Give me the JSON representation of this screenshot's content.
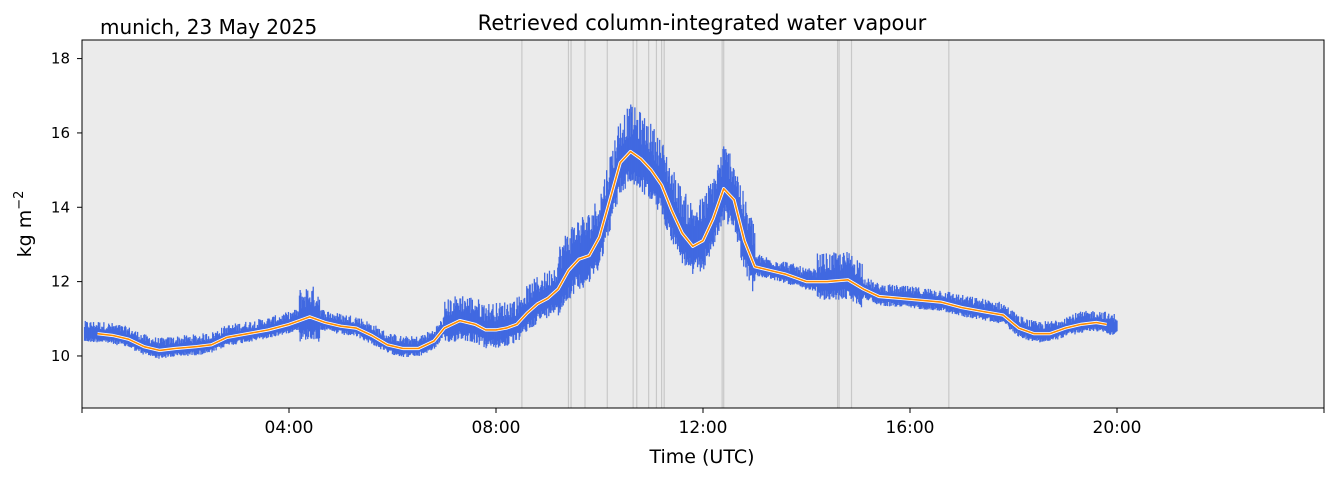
{
  "chart_data": {
    "type": "line",
    "site_label": "munich, 23 May 2025",
    "title": "Retrieved column-integrated water vapour",
    "xlabel": "Time (UTC)",
    "ylabel": "kg m",
    "ylabel_superscript": "−2",
    "xlim_hours": [
      0,
      24
    ],
    "ylim": [
      8.6,
      18.5
    ],
    "x_ticks": [
      {
        "hour": 4,
        "label": "04:00"
      },
      {
        "hour": 8,
        "label": "08:00"
      },
      {
        "hour": 12,
        "label": "12:00"
      },
      {
        "hour": 16,
        "label": "16:00"
      },
      {
        "hour": 20,
        "label": "20:00"
      }
    ],
    "x_minor_tick_hours": [
      0,
      24
    ],
    "y_ticks": [
      10,
      12,
      14,
      16,
      18
    ],
    "grid": false,
    "colors": {
      "background": "#ebebeb",
      "raw_points": "#4169e1",
      "smoothed_line": "#ff8c00",
      "flag_lines": "#c8c8c8"
    },
    "flag_hours": [
      8.5,
      9.4,
      9.45,
      9.72,
      10.15,
      10.65,
      10.72,
      10.95,
      11.1,
      11.2,
      11.25,
      12.37,
      12.4,
      14.6,
      14.63,
      14.87,
      16.75
    ],
    "series": [
      {
        "kind": "smoothed",
        "points": [
          [
            0.3,
            10.6
          ],
          [
            0.6,
            10.55
          ],
          [
            0.9,
            10.45
          ],
          [
            1.2,
            10.25
          ],
          [
            1.5,
            10.15
          ],
          [
            1.8,
            10.2
          ],
          [
            2.2,
            10.25
          ],
          [
            2.5,
            10.3
          ],
          [
            2.8,
            10.5
          ],
          [
            3.2,
            10.6
          ],
          [
            3.6,
            10.7
          ],
          [
            4.0,
            10.85
          ],
          [
            4.2,
            10.95
          ],
          [
            4.4,
            11.05
          ],
          [
            4.7,
            10.9
          ],
          [
            5.0,
            10.8
          ],
          [
            5.3,
            10.75
          ],
          [
            5.6,
            10.55
          ],
          [
            5.9,
            10.3
          ],
          [
            6.2,
            10.2
          ],
          [
            6.5,
            10.2
          ],
          [
            6.8,
            10.4
          ],
          [
            7.0,
            10.75
          ],
          [
            7.3,
            10.95
          ],
          [
            7.6,
            10.85
          ],
          [
            7.8,
            10.7
          ],
          [
            8.0,
            10.7
          ],
          [
            8.2,
            10.75
          ],
          [
            8.4,
            10.85
          ],
          [
            8.6,
            11.15
          ],
          [
            8.8,
            11.4
          ],
          [
            9.0,
            11.55
          ],
          [
            9.2,
            11.8
          ],
          [
            9.4,
            12.3
          ],
          [
            9.6,
            12.6
          ],
          [
            9.8,
            12.7
          ],
          [
            10.0,
            13.2
          ],
          [
            10.2,
            14.2
          ],
          [
            10.4,
            15.2
          ],
          [
            10.6,
            15.5
          ],
          [
            10.8,
            15.3
          ],
          [
            11.0,
            15.0
          ],
          [
            11.2,
            14.6
          ],
          [
            11.4,
            13.9
          ],
          [
            11.6,
            13.3
          ],
          [
            11.8,
            12.95
          ],
          [
            12.0,
            13.1
          ],
          [
            12.2,
            13.7
          ],
          [
            12.4,
            14.5
          ],
          [
            12.6,
            14.2
          ],
          [
            12.8,
            13.1
          ],
          [
            13.0,
            12.4
          ],
          [
            13.3,
            12.3
          ],
          [
            13.6,
            12.2
          ],
          [
            14.0,
            12.0
          ],
          [
            14.4,
            12.0
          ],
          [
            14.8,
            12.05
          ],
          [
            15.1,
            11.8
          ],
          [
            15.4,
            11.6
          ],
          [
            15.8,
            11.55
          ],
          [
            16.2,
            11.5
          ],
          [
            16.6,
            11.45
          ],
          [
            17.0,
            11.3
          ],
          [
            17.4,
            11.2
          ],
          [
            17.8,
            11.1
          ],
          [
            18.1,
            10.75
          ],
          [
            18.4,
            10.6
          ],
          [
            18.7,
            10.6
          ],
          [
            19.0,
            10.75
          ],
          [
            19.3,
            10.85
          ],
          [
            19.6,
            10.9
          ],
          [
            19.8,
            10.85
          ]
        ]
      }
    ]
  }
}
